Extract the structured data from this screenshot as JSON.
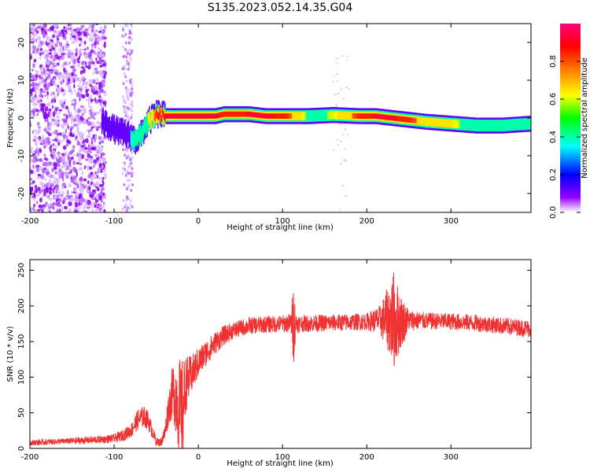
{
  "title": "S135.2023.052.14.35.G04",
  "chart_data": [
    {
      "type": "heatmap",
      "xlabel": "Height of straight line (km)",
      "ylabel": "Frequency (Hz)",
      "xlim": [
        -200,
        395
      ],
      "ylim": [
        -25,
        25
      ],
      "x_ticks": [
        "-200",
        "-100",
        "0",
        "100",
        "200",
        "300"
      ],
      "y_ticks": [
        "-20",
        "-10",
        "0",
        "10",
        "20"
      ],
      "colorbar": {
        "label": "Normalized spectral amplitude",
        "range": [
          0,
          1
        ],
        "ticks": [
          "0.0",
          "0.2",
          "0.4",
          "0.6",
          "0.8"
        ]
      },
      "ridge": {
        "x": [
          -115,
          -100,
          -90,
          -80,
          -75,
          -70,
          -65,
          -60,
          -55,
          -50,
          -45,
          -40,
          -30,
          -20,
          0,
          20,
          30,
          40,
          50,
          60,
          80,
          100,
          130,
          160,
          190,
          210,
          230,
          250,
          270,
          300,
          330,
          360,
          395
        ],
        "frequency": [
          -1,
          -3,
          -4,
          -5,
          -6,
          -5,
          -3,
          -1,
          0,
          1,
          1,
          0.5,
          0.5,
          0.5,
          0.5,
          0.5,
          1,
          1,
          1,
          1,
          0.5,
          0.5,
          0.5,
          0.8,
          0.5,
          0.5,
          0,
          -0.5,
          -1,
          -1.5,
          -2,
          -2,
          -1.5
        ],
        "amplitude": [
          0.2,
          0.3,
          0.3,
          0.35,
          0.45,
          0.45,
          0.5,
          0.6,
          0.75,
          0.85,
          0.85,
          0.95,
          0.95,
          0.95,
          0.95,
          0.95,
          0.9,
          0.9,
          0.9,
          0.95,
          0.95,
          0.9,
          0.55,
          0.6,
          0.85,
          0.95,
          0.95,
          0.85,
          0.7,
          0.65,
          0.45,
          0.45,
          0.4
        ]
      }
    },
    {
      "type": "line",
      "xlabel": "Height of straight line (km)",
      "ylabel": "SNR (10 * v/v)",
      "xlim": [
        -200,
        395
      ],
      "ylim": [
        0,
        265
      ],
      "x_ticks": [
        "-200",
        "-100",
        "0",
        "100",
        "200",
        "300"
      ],
      "y_ticks": [
        "0",
        "50",
        "100",
        "150",
        "200",
        "250"
      ],
      "series": [
        {
          "color": "#f03232",
          "x": [
            -200,
            -180,
            -160,
            -140,
            -120,
            -100,
            -90,
            -80,
            -72,
            -65,
            -60,
            -55,
            -50,
            -45,
            -40,
            -35,
            -30,
            -25,
            -20,
            -15,
            -10,
            -5,
            0,
            10,
            20,
            30,
            40,
            60,
            80,
            100,
            110,
            113,
            116,
            120,
            150,
            180,
            200,
            215,
            225,
            232,
            240,
            250,
            270,
            300,
            330,
            360,
            395
          ],
          "values": [
            8,
            9,
            10,
            11,
            12,
            14,
            18,
            25,
            40,
            45,
            40,
            25,
            10,
            8,
            20,
            60,
            80,
            70,
            35,
            90,
            100,
            110,
            120,
            135,
            148,
            158,
            165,
            172,
            174,
            175,
            176,
            175,
            176,
            175,
            176,
            177,
            178,
            180,
            182,
            180,
            178,
            180,
            179,
            178,
            176,
            172,
            168
          ],
          "noise": [
            4,
            4,
            4,
            5,
            5,
            6,
            8,
            10,
            15,
            15,
            14,
            10,
            6,
            6,
            12,
            25,
            40,
            60,
            90,
            40,
            30,
            25,
            22,
            18,
            16,
            14,
            12,
            12,
            12,
            12,
            14,
            60,
            14,
            12,
            12,
            12,
            12,
            20,
            45,
            70,
            40,
            15,
            12,
            12,
            12,
            12,
            12
          ]
        }
      ]
    }
  ]
}
